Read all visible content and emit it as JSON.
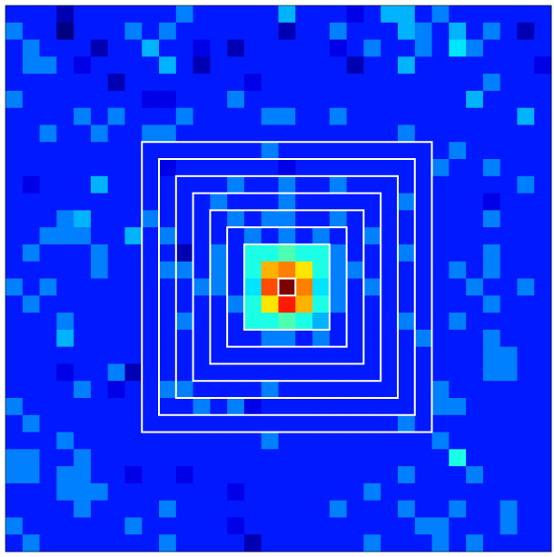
{
  "chart_data": {
    "type": "heatmap",
    "colormap": "jet",
    "clim": [
      0,
      20
    ],
    "values": [
      [
        3,
        3,
        3,
        1,
        3,
        3,
        3,
        3,
        3,
        3,
        5,
        3,
        3,
        3,
        3,
        3,
        6,
        3,
        3,
        3,
        2,
        3,
        6,
        6,
        3,
        5,
        3,
        3,
        3,
        3,
        3,
        3
      ],
      [
        5,
        3,
        3,
        0,
        3,
        3,
        3,
        5,
        3,
        5,
        3,
        3,
        3,
        3,
        3,
        3,
        1,
        3,
        3,
        5,
        3,
        3,
        3,
        6,
        5,
        3,
        6,
        3,
        5,
        3,
        1,
        3
      ],
      [
        3,
        5,
        3,
        3,
        3,
        1,
        3,
        3,
        6,
        3,
        3,
        2,
        3,
        1,
        3,
        3,
        3,
        3,
        3,
        2,
        3,
        5,
        3,
        3,
        5,
        3,
        7,
        5,
        3,
        3,
        3,
        3
      ],
      [
        3,
        5,
        5,
        3,
        2,
        3,
        3,
        3,
        3,
        6,
        3,
        1,
        3,
        3,
        3,
        3,
        3,
        3,
        3,
        3,
        1,
        3,
        3,
        6,
        3,
        3,
        3,
        3,
        3,
        3,
        3,
        2
      ],
      [
        3,
        3,
        3,
        3,
        3,
        3,
        1,
        3,
        3,
        3,
        3,
        3,
        3,
        3,
        2,
        3,
        3,
        3,
        3,
        3,
        3,
        3,
        3,
        3,
        3,
        3,
        3,
        3,
        5,
        3,
        3,
        3
      ],
      [
        5,
        3,
        3,
        3,
        3,
        3,
        3,
        3,
        2,
        2,
        3,
        3,
        3,
        5,
        3,
        3,
        3,
        3,
        3,
        3,
        3,
        3,
        3,
        3,
        3,
        3,
        3,
        6,
        3,
        3,
        3,
        3
      ],
      [
        3,
        3,
        3,
        3,
        5,
        3,
        5,
        3,
        3,
        3,
        5,
        3,
        3,
        3,
        3,
        5,
        5,
        3,
        3,
        5,
        3,
        3,
        3,
        3,
        3,
        3,
        3,
        3,
        3,
        3,
        6,
        3
      ],
      [
        3,
        3,
        5,
        3,
        3,
        5,
        3,
        3,
        5,
        5,
        3,
        3,
        3,
        3,
        3,
        3,
        3,
        3,
        3,
        3,
        3,
        3,
        3,
        5,
        3,
        3,
        3,
        3,
        3,
        3,
        3,
        3
      ],
      [
        3,
        3,
        3,
        3,
        3,
        3,
        3,
        3,
        3,
        3,
        3,
        3,
        3,
        3,
        3,
        5,
        3,
        3,
        3,
        3,
        3,
        3,
        3,
        3,
        3,
        3,
        5,
        3,
        3,
        3,
        3,
        3
      ],
      [
        3,
        3,
        3,
        3,
        3,
        3,
        3,
        3,
        3,
        2,
        3,
        3,
        3,
        3,
        3,
        3,
        2,
        3,
        3,
        3,
        3,
        3,
        3,
        3,
        3,
        5,
        3,
        3,
        5,
        3,
        3,
        3
      ],
      [
        3,
        2,
        3,
        3,
        3,
        6,
        3,
        3,
        3,
        3,
        3,
        3,
        3,
        5,
        3,
        3,
        5,
        3,
        3,
        5,
        3,
        3,
        3,
        3,
        3,
        3,
        3,
        3,
        3,
        3,
        5,
        3
      ],
      [
        3,
        3,
        3,
        3,
        3,
        3,
        3,
        3,
        3,
        3,
        3,
        3,
        5,
        3,
        3,
        3,
        5,
        3,
        3,
        3,
        3,
        3,
        3,
        5,
        3,
        3,
        3,
        3,
        2,
        3,
        3,
        3
      ],
      [
        3,
        3,
        3,
        5,
        6,
        3,
        3,
        3,
        5,
        3,
        3,
        3,
        3,
        5,
        3,
        5,
        5,
        3,
        3,
        5,
        3,
        3,
        3,
        3,
        3,
        3,
        3,
        3,
        5,
        3,
        3,
        3
      ],
      [
        3,
        3,
        5,
        5,
        5,
        3,
        3,
        6,
        3,
        5,
        3,
        3,
        3,
        3,
        5,
        3,
        5,
        3,
        5,
        3,
        3,
        5,
        3,
        3,
        3,
        3,
        3,
        3,
        3,
        3,
        3,
        3
      ],
      [
        3,
        5,
        3,
        3,
        3,
        5,
        3,
        3,
        3,
        3,
        1,
        3,
        5,
        3,
        8,
        8,
        9,
        8,
        8,
        5,
        3,
        3,
        3,
        5,
        3,
        3,
        3,
        3,
        5,
        3,
        3,
        3
      ],
      [
        3,
        3,
        3,
        3,
        3,
        5,
        3,
        3,
        3,
        5,
        5,
        3,
        5,
        3,
        8,
        14,
        15,
        13,
        8,
        5,
        5,
        3,
        3,
        3,
        3,
        3,
        5,
        3,
        5,
        3,
        3,
        3
      ],
      [
        5,
        3,
        5,
        3,
        3,
        3,
        3,
        3,
        3,
        3,
        3,
        5,
        5,
        3,
        7,
        16,
        20,
        15,
        7,
        5,
        3,
        5,
        3,
        3,
        3,
        3,
        3,
        5,
        3,
        3,
        5,
        3
      ],
      [
        3,
        5,
        3,
        3,
        3,
        3,
        3,
        3,
        3,
        3,
        3,
        3,
        3,
        5,
        8,
        13,
        17,
        14,
        8,
        5,
        3,
        3,
        3,
        3,
        3,
        3,
        3,
        3,
        5,
        3,
        3,
        3
      ],
      [
        3,
        3,
        3,
        5,
        3,
        3,
        3,
        3,
        3,
        3,
        5,
        3,
        3,
        3,
        8,
        8,
        9,
        8,
        6,
        3,
        3,
        3,
        3,
        5,
        3,
        3,
        5,
        3,
        3,
        3,
        3,
        3
      ],
      [
        3,
        3,
        3,
        6,
        3,
        3,
        3,
        3,
        3,
        3,
        3,
        3,
        3,
        3,
        3,
        5,
        5,
        3,
        5,
        3,
        3,
        3,
        3,
        3,
        5,
        3,
        3,
        3,
        5,
        3,
        3,
        3
      ],
      [
        3,
        3,
        3,
        3,
        3,
        3,
        3,
        3,
        3,
        3,
        3,
        3,
        3,
        3,
        3,
        3,
        3,
        3,
        3,
        3,
        3,
        3,
        3,
        3,
        3,
        3,
        3,
        3,
        5,
        5,
        3,
        3
      ],
      [
        3,
        3,
        3,
        2,
        3,
        3,
        5,
        1,
        3,
        3,
        3,
        3,
        3,
        3,
        3,
        3,
        3,
        3,
        3,
        3,
        3,
        3,
        3,
        3,
        3,
        3,
        3,
        3,
        5,
        5,
        3,
        3
      ],
      [
        3,
        3,
        3,
        3,
        5,
        3,
        2,
        3,
        3,
        5,
        5,
        3,
        3,
        3,
        3,
        5,
        3,
        3,
        3,
        3,
        3,
        3,
        3,
        3,
        3,
        5,
        3,
        3,
        3,
        3,
        3,
        3
      ],
      [
        5,
        3,
        3,
        3,
        3,
        3,
        3,
        3,
        3,
        3,
        3,
        5,
        3,
        5,
        2,
        3,
        3,
        3,
        3,
        3,
        3,
        3,
        3,
        3,
        3,
        5,
        5,
        3,
        3,
        3,
        3,
        3
      ],
      [
        3,
        5,
        3,
        3,
        3,
        3,
        3,
        3,
        3,
        3,
        3,
        3,
        3,
        3,
        3,
        3,
        3,
        3,
        3,
        3,
        3,
        3,
        3,
        5,
        3,
        3,
        3,
        3,
        3,
        3,
        3,
        3
      ],
      [
        3,
        3,
        3,
        5,
        3,
        3,
        3,
        3,
        3,
        3,
        3,
        3,
        3,
        3,
        3,
        5,
        3,
        3,
        3,
        3,
        3,
        3,
        3,
        3,
        3,
        5,
        3,
        3,
        3,
        3,
        3,
        3
      ],
      [
        5,
        5,
        3,
        3,
        5,
        3,
        3,
        3,
        3,
        3,
        3,
        3,
        3,
        3,
        3,
        3,
        3,
        3,
        3,
        3,
        3,
        3,
        3,
        3,
        3,
        3,
        8,
        3,
        3,
        3,
        3,
        3
      ],
      [
        5,
        5,
        3,
        5,
        5,
        3,
        3,
        2,
        3,
        3,
        2,
        3,
        3,
        3,
        3,
        3,
        3,
        3,
        3,
        3,
        3,
        3,
        3,
        5,
        3,
        3,
        3,
        5,
        3,
        3,
        3,
        3
      ],
      [
        3,
        3,
        3,
        5,
        5,
        5,
        3,
        3,
        3,
        3,
        3,
        3,
        3,
        2,
        3,
        3,
        3,
        3,
        3,
        3,
        3,
        5,
        3,
        3,
        3,
        3,
        3,
        3,
        3,
        3,
        3,
        3
      ],
      [
        3,
        3,
        3,
        3,
        5,
        3,
        3,
        3,
        3,
        5,
        3,
        3,
        3,
        3,
        3,
        3,
        3,
        3,
        3,
        5,
        3,
        3,
        3,
        5,
        3,
        3,
        5,
        3,
        3,
        5,
        3,
        3
      ],
      [
        5,
        3,
        3,
        3,
        3,
        3,
        3,
        5,
        3,
        3,
        3,
        3,
        3,
        2,
        3,
        3,
        3,
        3,
        3,
        3,
        3,
        3,
        3,
        3,
        5,
        5,
        3,
        3,
        3,
        5,
        3,
        3
      ],
      [
        3,
        5,
        3,
        3,
        3,
        3,
        3,
        3,
        3,
        5,
        3,
        3,
        3,
        3,
        1,
        3,
        3,
        3,
        3,
        3,
        3,
        5,
        3,
        3,
        3,
        5,
        3,
        5,
        3,
        3,
        3,
        3
      ]
    ]
  }
}
